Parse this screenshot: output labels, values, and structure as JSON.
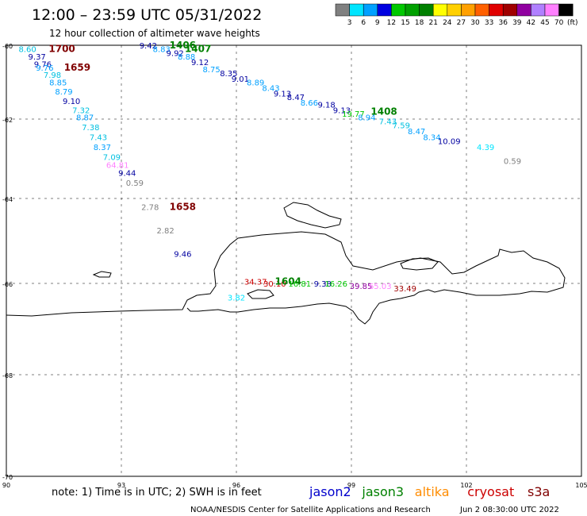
{
  "header": {
    "title": "12:00 – 23:59 UTC 05/31/2022",
    "subtitle": "12 hour collection of altimeter wave heights"
  },
  "colorbar": {
    "unit": "(ft)",
    "ticks": [
      "3",
      "6",
      "9",
      "12",
      "15",
      "18",
      "21",
      "24",
      "27",
      "30",
      "33",
      "36",
      "39",
      "42",
      "45",
      "70"
    ],
    "colors": [
      "#808080",
      "#00e5ff",
      "#00a0ff",
      "#0000e0",
      "#00c800",
      "#00a000",
      "#008000",
      "#ffff00",
      "#ffd000",
      "#ffa000",
      "#ff6000",
      "#e00000",
      "#a00000",
      "#9000a0",
      "#b080ff",
      "#ff80ff",
      "#000000"
    ]
  },
  "axes": {
    "lat_labels": [
      "-60",
      "-62",
      "-64",
      "-66",
      "-68",
      "-70"
    ],
    "lon_labels": [
      "90",
      "93",
      "96",
      "99",
      "102",
      "105"
    ]
  },
  "footer": {
    "note": "note: 1) Time is in UTC; 2) SWH is in feet",
    "legend": [
      {
        "name": "jason2",
        "color": "#0000cc"
      },
      {
        "name": "jason3",
        "color": "#008000"
      },
      {
        "name": "altika",
        "color": "#ff8c00"
      },
      {
        "name": "cryosat",
        "color": "#cc0000"
      },
      {
        "name": "s3a",
        "color": "#800000"
      }
    ],
    "credit": "NOAA/NESDIS Center for Satellite Applications and Research",
    "timestamp": "Jun  2 08:30:00 UTC 2022"
  },
  "map_labels": [
    {
      "t": "8.60",
      "c": "#00c0e0",
      "lon": 90.55,
      "lat": -60.1
    },
    {
      "t": "1700",
      "c": "#800000",
      "lon": 91.45,
      "lat": -60.1,
      "big": true
    },
    {
      "t": "9.37",
      "c": "#0000a0",
      "lon": 90.8,
      "lat": -60.3
    },
    {
      "t": "9.76",
      "c": "#0000a0",
      "lon": 90.95,
      "lat": -60.5
    },
    {
      "t": "9.76",
      "c": "#00a0ff",
      "lon": 91.0,
      "lat": -60.6
    },
    {
      "t": "1659",
      "c": "#800000",
      "lon": 91.85,
      "lat": -60.6,
      "big": true
    },
    {
      "t": "7.98",
      "c": "#00c0e0",
      "lon": 91.2,
      "lat": -60.8
    },
    {
      "t": "8.85",
      "c": "#00a0ff",
      "lon": 91.35,
      "lat": -61.0
    },
    {
      "t": "8.79",
      "c": "#00a0ff",
      "lon": 91.5,
      "lat": -61.25
    },
    {
      "t": "9.10",
      "c": "#0000a0",
      "lon": 91.7,
      "lat": -61.5
    },
    {
      "t": "7.32",
      "c": "#00c0e0",
      "lon": 91.95,
      "lat": -61.75
    },
    {
      "t": "8.87",
      "c": "#00a0ff",
      "lon": 92.05,
      "lat": -61.95
    },
    {
      "t": "7.38",
      "c": "#00c0e0",
      "lon": 92.2,
      "lat": -62.2
    },
    {
      "t": "7.43",
      "c": "#00c0e0",
      "lon": 92.4,
      "lat": -62.45
    },
    {
      "t": "8.37",
      "c": "#00a0ff",
      "lon": 92.5,
      "lat": -62.7
    },
    {
      "t": "7.09",
      "c": "#00c0e0",
      "lon": 92.75,
      "lat": -62.95
    },
    {
      "t": "64.81",
      "c": "#ff80ff",
      "lon": 92.9,
      "lat": -63.15
    },
    {
      "t": "9.44",
      "c": "#0000a0",
      "lon": 93.15,
      "lat": -63.35
    },
    {
      "t": "0.59",
      "c": "#808080",
      "lon": 93.35,
      "lat": -63.6
    },
    {
      "t": "2.78",
      "c": "#808080",
      "lon": 93.75,
      "lat": -64.2
    },
    {
      "t": "1658",
      "c": "#800000",
      "lon": 94.6,
      "lat": -64.2,
      "big": true
    },
    {
      "t": "2.82",
      "c": "#808080",
      "lon": 94.15,
      "lat": -64.75
    },
    {
      "t": "9.46",
      "c": "#0000a0",
      "lon": 94.6,
      "lat": -65.3
    },
    {
      "t": "9.42",
      "c": "#0000a0",
      "lon": 93.7,
      "lat": -60.0
    },
    {
      "t": "1406",
      "c": "#008000",
      "lon": 94.6,
      "lat": -60.0,
      "big": true
    },
    {
      "t": "8.83",
      "c": "#00a0ff",
      "lon": 94.05,
      "lat": -60.1
    },
    {
      "t": "9.92",
      "c": "#0000a0",
      "lon": 94.4,
      "lat": -60.2
    },
    {
      "t": "1407",
      "c": "#008000",
      "lon": 95.0,
      "lat": -60.1,
      "big": true
    },
    {
      "t": "8.88",
      "c": "#00a0ff",
      "lon": 94.7,
      "lat": -60.3
    },
    {
      "t": "9.12",
      "c": "#0000a0",
      "lon": 95.05,
      "lat": -60.45
    },
    {
      "t": "8.75",
      "c": "#00a0ff",
      "lon": 95.35,
      "lat": -60.65
    },
    {
      "t": "8.35",
      "c": "#0000a0",
      "lon": 95.8,
      "lat": -60.75
    },
    {
      "t": "9.01",
      "c": "#0000a0",
      "lon": 96.1,
      "lat": -60.9
    },
    {
      "t": "8.89",
      "c": "#00a0ff",
      "lon": 96.5,
      "lat": -61.0
    },
    {
      "t": "8.43",
      "c": "#00a0ff",
      "lon": 96.9,
      "lat": -61.15
    },
    {
      "t": "9.13",
      "c": "#0000a0",
      "lon": 97.2,
      "lat": -61.3
    },
    {
      "t": "8.47",
      "c": "#0000a0",
      "lon": 97.55,
      "lat": -61.4
    },
    {
      "t": "8.66",
      "c": "#00a0ff",
      "lon": 97.9,
      "lat": -61.55
    },
    {
      "t": "9.18",
      "c": "#0000a0",
      "lon": 98.35,
      "lat": -61.6
    },
    {
      "t": "9.13",
      "c": "#0000a0",
      "lon": 98.75,
      "lat": -61.75
    },
    {
      "t": "19.77",
      "c": "#00c800",
      "lon": 99.05,
      "lat": -61.85
    },
    {
      "t": "1408",
      "c": "#008000",
      "lon": 99.85,
      "lat": -61.8,
      "big": true
    },
    {
      "t": "8.94",
      "c": "#00a0ff",
      "lon": 99.4,
      "lat": -61.95
    },
    {
      "t": "7.43",
      "c": "#00c0e0",
      "lon": 99.95,
      "lat": -62.05
    },
    {
      "t": "7.59",
      "c": "#00c0e0",
      "lon": 100.3,
      "lat": -62.15
    },
    {
      "t": "8.47",
      "c": "#00a0ff",
      "lon": 100.7,
      "lat": -62.3
    },
    {
      "t": "8.34",
      "c": "#00a0ff",
      "lon": 101.1,
      "lat": -62.45
    },
    {
      "t": "10.09",
      "c": "#0000a0",
      "lon": 101.55,
      "lat": -62.55
    },
    {
      "t": "4.39",
      "c": "#00e5ff",
      "lon": 102.5,
      "lat": -62.7
    },
    {
      "t": "0.59",
      "c": "#808080",
      "lon": 103.2,
      "lat": -63.05
    },
    {
      "t": "34.37",
      "c": "#cc0000",
      "lon": 96.5,
      "lat": -65.95
    },
    {
      "t": "30.10",
      "c": "#cc0000",
      "lon": 97.0,
      "lat": -66.0
    },
    {
      "t": "1604",
      "c": "#008000",
      "lon": 97.35,
      "lat": -65.95,
      "big": true
    },
    {
      "t": "16.81",
      "c": "#00c800",
      "lon": 97.65,
      "lat": -66.0
    },
    {
      "t": "9.38",
      "c": "#0000a0",
      "lon": 98.25,
      "lat": -66.0
    },
    {
      "t": "16.26",
      "c": "#00c800",
      "lon": 98.6,
      "lat": -66.0
    },
    {
      "t": "39.85",
      "c": "#9000a0",
      "lon": 99.25,
      "lat": -66.05
    },
    {
      "t": "65.03",
      "c": "#ff80ff",
      "lon": 99.75,
      "lat": -66.05
    },
    {
      "t": "33.49",
      "c": "#a00000",
      "lon": 100.4,
      "lat": -66.1
    },
    {
      "t": "3.82",
      "c": "#00e5ff",
      "lon": 96.0,
      "lat": -66.3
    }
  ]
}
